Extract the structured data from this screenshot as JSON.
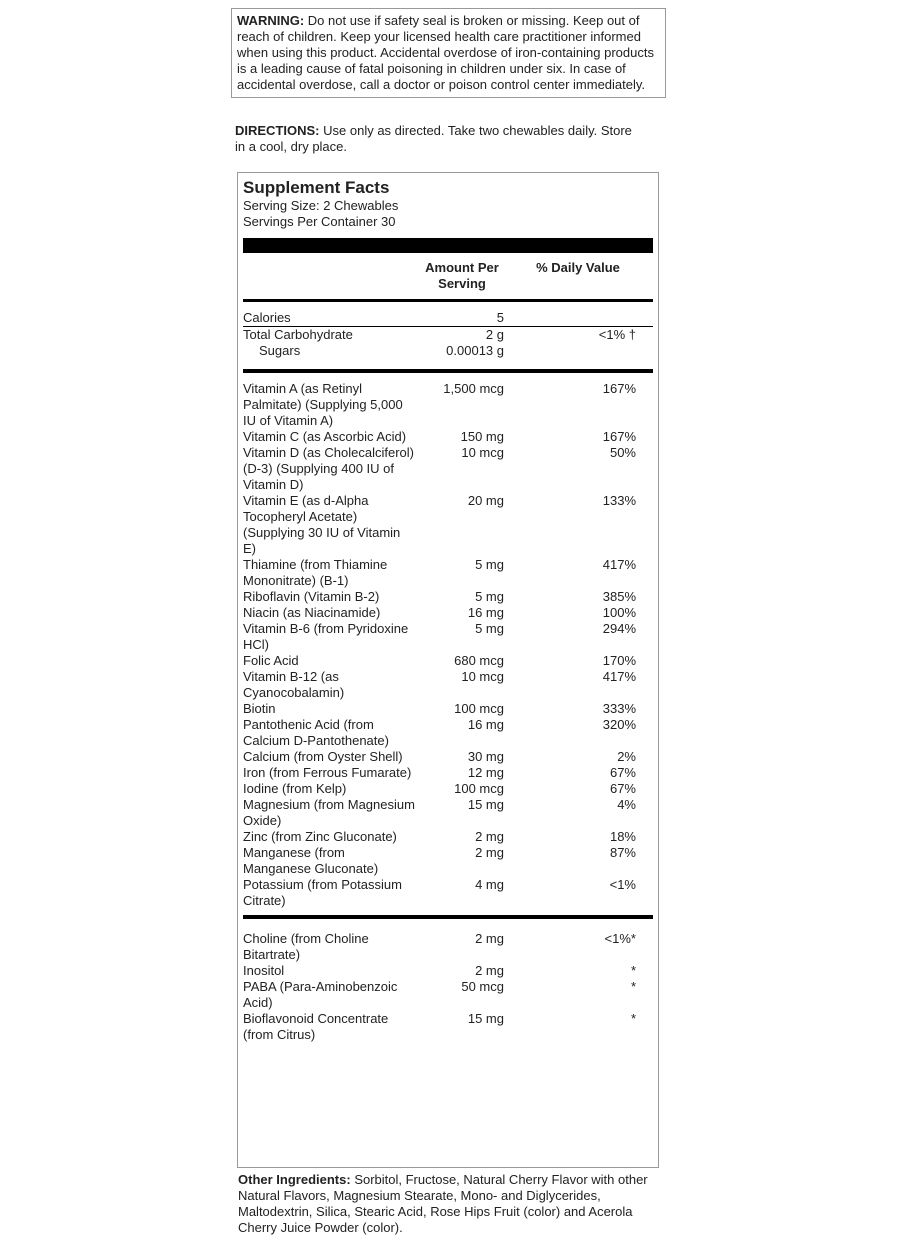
{
  "warning": {
    "label": "WARNING:",
    "text": "Do not use if safety seal is broken or missing. Keep out of reach of children. Keep your licensed health care practitioner informed when using this product. Accidental overdose of iron-containing products is a leading cause of fatal poisoning in children under six. In case of accidental overdose, call a doctor or poison control center immediately."
  },
  "directions": {
    "label": "DIRECTIONS:",
    "text": "Use only as directed. Take two chewables daily. Store in a cool, dry place."
  },
  "facts": {
    "title": "Supplement Facts",
    "serving_size": "Serving Size: 2 Chewables",
    "servings_per_container": "Servings Per Container 30",
    "headers": [
      "Amount Per Serving",
      "% Daily Value"
    ],
    "macros": [
      {
        "name": "Calories",
        "amount": "5"
      },
      {
        "name": "Total Carbohydrate",
        "amount": "2 g",
        "dv": "<1% †"
      },
      {
        "name": "Sugars",
        "amount": "0.00013 g"
      }
    ],
    "nutrients": [
      {
        "name": "Vitamin A (as Retinyl Palmitate) (Supplying 5,000 IU of Vitamin A)",
        "amount": "1,500 mcg",
        "dv": "167%"
      },
      {
        "name": "Vitamin C (as Ascorbic Acid)",
        "amount": "150 mg",
        "dv": "167%"
      },
      {
        "name": "Vitamin D (as Cholecalciferol) (D-3) (Supplying 400 IU of Vitamin D)",
        "amount": "10 mcg",
        "dv": "50%"
      },
      {
        "name": "Vitamin E (as d-Alpha Tocopheryl Acetate) (Supplying 30 IU of Vitamin E)",
        "amount": "20 mg",
        "dv": "133%"
      },
      {
        "name": "Thiamine (from Thiamine Mononitrate) (B-1)",
        "amount": "5 mg",
        "dv": "417%"
      },
      {
        "name": "Riboflavin (Vitamin B-2)",
        "amount": "5 mg",
        "dv": "385%"
      },
      {
        "name": "Niacin (as Niacinamide)",
        "amount": "16 mg",
        "dv": "100%"
      },
      {
        "name": "Vitamin B-6 (from Pyridoxine HCl)",
        "amount": "5 mg",
        "dv": "294%"
      },
      {
        "name": "Folic Acid",
        "amount": "680 mcg",
        "dv": "170%"
      },
      {
        "name": "Vitamin B-12 (as Cyanocobalamin)",
        "amount": "10 mcg",
        "dv": "417%"
      },
      {
        "name": "Biotin",
        "amount": "100 mcg",
        "dv": "333%"
      },
      {
        "name": "Pantothenic Acid (from Calcium D-Pantothenate)",
        "amount": "16 mg",
        "dv": "320%"
      },
      {
        "name": "Calcium (from Oyster Shell)",
        "amount": "30 mg",
        "dv": "2%"
      },
      {
        "name": "Iron (from Ferrous Fumarate)",
        "amount": "12 mg",
        "dv": "67%"
      },
      {
        "name": "Iodine (from Kelp)",
        "amount": "100 mcg",
        "dv": "67%"
      },
      {
        "name": "Magnesium (from Magnesium Oxide)",
        "amount": "15 mg",
        "dv": "4%"
      },
      {
        "name": "Zinc (from Zinc Gluconate)",
        "amount": "2 mg",
        "dv": "18%"
      },
      {
        "name": "Manganese (from Manganese Gluconate)",
        "amount": "2 mg",
        "dv": "87%"
      },
      {
        "name": "Potassium (from Potassium Citrate)",
        "amount": "4 mg",
        "dv": "<1%"
      }
    ],
    "others": [
      {
        "name": "Choline (from Choline Bitartrate)",
        "amount": "2 mg",
        "dv": "<1%*"
      },
      {
        "name": "Inositol",
        "amount": "2 mg",
        "dv": "*"
      },
      {
        "name": "PABA (Para-Aminobenzoic Acid)",
        "amount": "50 mcg",
        "dv": "*"
      },
      {
        "name": "Bioflavonoid Concentrate (from Citrus)",
        "amount": "15 mg",
        "dv": "*"
      }
    ]
  },
  "other_ingredients": {
    "label": "Other Ingredients:",
    "text": "Sorbitol, Fructose, Natural Cherry Flavor with other Natural Flavors, Magnesium Stearate, Mono- and Diglycerides, Maltodextrin, Silica, Stearic Acid, Rose Hips Fruit (color) and Acerola Cherry Juice Powder (color)."
  }
}
